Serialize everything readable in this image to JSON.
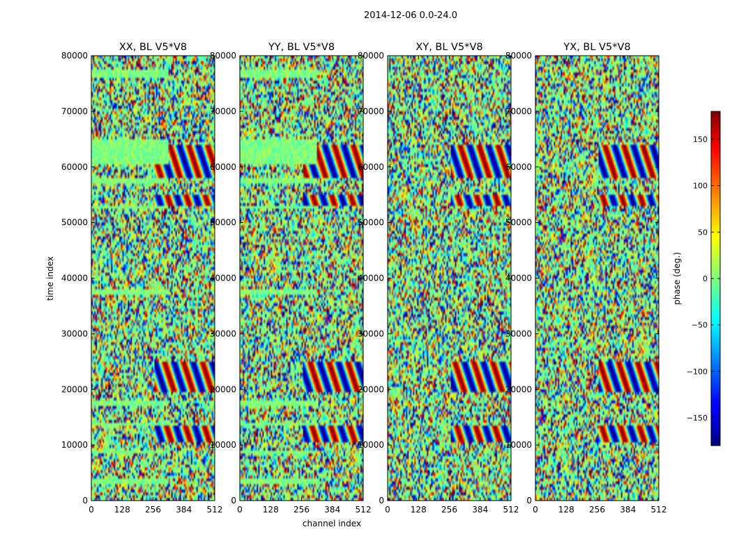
{
  "figure_title": "2014-12-06 0.0-24.0",
  "chart_data": {
    "type": "heatmap",
    "title": "2014-12-06 0.0-24.0",
    "xlabel": "channel index",
    "ylabel": "time index",
    "xlim": [
      0,
      512
    ],
    "ylim": [
      0,
      80000
    ],
    "xticks": [
      0,
      128,
      256,
      384,
      512
    ],
    "yticks": [
      0,
      10000,
      20000,
      30000,
      40000,
      50000,
      60000,
      70000,
      80000
    ],
    "panels": [
      {
        "title": "XX, BL V5*V8",
        "pol": "XX"
      },
      {
        "title": "YY, BL V5*V8",
        "pol": "YY"
      },
      {
        "title": "XY, BL V5*V8",
        "pol": "XY"
      },
      {
        "title": "YX, BL V5*V8",
        "pol": "YX"
      }
    ],
    "colorbar": {
      "label": "phase (deg.)",
      "range": [
        -180,
        180
      ],
      "ticks": [
        -150,
        -100,
        -50,
        0,
        50,
        100,
        150
      ],
      "tick_labels": [
        "−150",
        "−100",
        "−50",
        "0",
        "50",
        "100",
        "150"
      ],
      "colormap": "jet"
    },
    "flagged_value": 0,
    "flagged_rows": [
      [
        3000,
        4000
      ],
      [
        8500,
        9200
      ],
      [
        13500,
        14000
      ],
      [
        17000,
        18000
      ],
      [
        37000,
        38000
      ],
      [
        52500,
        53000
      ],
      [
        57000,
        58000
      ],
      [
        60500,
        65000
      ],
      [
        76000,
        77500
      ]
    ],
    "flagged_channels_end": 320,
    "fringe_rows": [
      [
        10500,
        13500
      ],
      [
        19500,
        25000
      ],
      [
        53000,
        55000
      ],
      [
        58000,
        60500
      ],
      [
        60500,
        64000
      ]
    ],
    "grid": false,
    "colors": {
      "flagged": "#63ff8b",
      "axes": "#000000",
      "background": "#ffffff"
    }
  }
}
